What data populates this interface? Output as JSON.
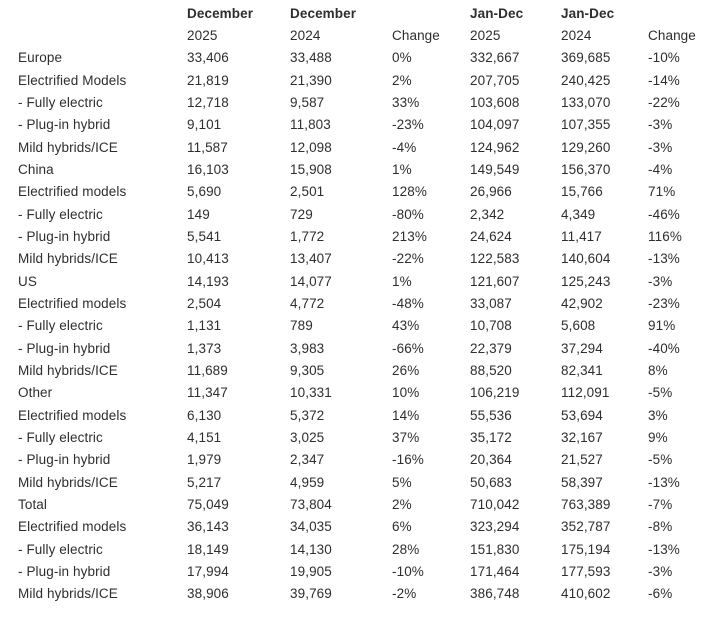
{
  "page": {
    "background": "#ffffff",
    "text_color": "#2e2e2e"
  },
  "chart_data": {
    "type": "table",
    "header_top": [
      "",
      "December",
      "December",
      "",
      "Jan-Dec",
      "Jan-Dec",
      ""
    ],
    "header_sub": [
      "",
      "2025",
      "2024",
      "Change",
      "2025",
      "2024",
      "Change"
    ],
    "sections": [
      "Europe",
      "China",
      "US",
      "Other",
      "Total"
    ],
    "section_start_indices": [
      0,
      5,
      10,
      15,
      20
    ],
    "rows": [
      [
        "Europe",
        "33,406",
        "33,488",
        "0%",
        "332,667",
        "369,685",
        "-10%"
      ],
      [
        "Electrified Models",
        "21,819",
        "21,390",
        "2%",
        "207,705",
        "240,425",
        "-14%"
      ],
      [
        "- Fully electric",
        "12,718",
        "9,587",
        "33%",
        "103,608",
        "133,070",
        "-22%"
      ],
      [
        "- Plug-in hybrid",
        "9,101",
        "11,803",
        "-23%",
        "104,097",
        "107,355",
        "-3%"
      ],
      [
        "Mild hybrids/ICE",
        "11,587",
        "12,098",
        "-4%",
        "124,962",
        "129,260",
        "-3%"
      ],
      [
        "China",
        "16,103",
        "15,908",
        "1%",
        "149,549",
        "156,370",
        "-4%"
      ],
      [
        "Electrified models",
        "5,690",
        "2,501",
        "128%",
        "26,966",
        "15,766",
        "71%"
      ],
      [
        "- Fully electric",
        "149",
        "729",
        "-80%",
        "2,342",
        "4,349",
        "-46%"
      ],
      [
        "- Plug-in hybrid",
        "5,541",
        "1,772",
        "213%",
        "24,624",
        "11,417",
        "116%"
      ],
      [
        "Mild hybrids/ICE",
        "10,413",
        "13,407",
        "-22%",
        "122,583",
        "140,604",
        "-13%"
      ],
      [
        "US",
        "14,193",
        "14,077",
        "1%",
        "121,607",
        "125,243",
        "-3%"
      ],
      [
        "Electrified models",
        "2,504",
        "4,772",
        "-48%",
        "33,087",
        "42,902",
        "-23%"
      ],
      [
        "- Fully electric",
        "1,131",
        "789",
        "43%",
        "10,708",
        "5,608",
        "91%"
      ],
      [
        "- Plug-in hybrid",
        "1,373",
        "3,983",
        "-66%",
        "22,379",
        "37,294",
        "-40%"
      ],
      [
        "Mild hybrids/ICE",
        "11,689",
        "9,305",
        "26%",
        "88,520",
        "82,341",
        "8%"
      ],
      [
        "Other",
        "11,347",
        "10,331",
        "10%",
        "106,219",
        "112,091",
        "-5%"
      ],
      [
        "Electrified models",
        "6,130",
        "5,372",
        "14%",
        "55,536",
        "53,694",
        "3%"
      ],
      [
        "- Fully electric",
        "4,151",
        "3,025",
        "37%",
        "35,172",
        "32,167",
        "9%"
      ],
      [
        "- Plug-in hybrid",
        "1,979",
        "2,347",
        "-16%",
        "20,364",
        "21,527",
        "-5%"
      ],
      [
        "Mild hybrids/ICE",
        "5,217",
        "4,959",
        "5%",
        "50,683",
        "58,397",
        "-13%"
      ],
      [
        "Total",
        "75,049",
        "73,804",
        "2%",
        "710,042",
        "763,389",
        "-7%"
      ],
      [
        "Electrified models",
        "36,143",
        "34,035",
        "6%",
        "323,294",
        "352,787",
        "-8%"
      ],
      [
        "- Fully electric",
        "18,149",
        "14,130",
        "28%",
        "151,830",
        "175,194",
        "-13%"
      ],
      [
        "- Plug-in hybrid",
        "17,994",
        "19,905",
        "-10%",
        "171,464",
        "177,593",
        "-3%"
      ],
      [
        "Mild hybrids/ICE",
        "38,906",
        "39,769",
        "-2%",
        "386,748",
        "410,602",
        "-6%"
      ]
    ]
  }
}
